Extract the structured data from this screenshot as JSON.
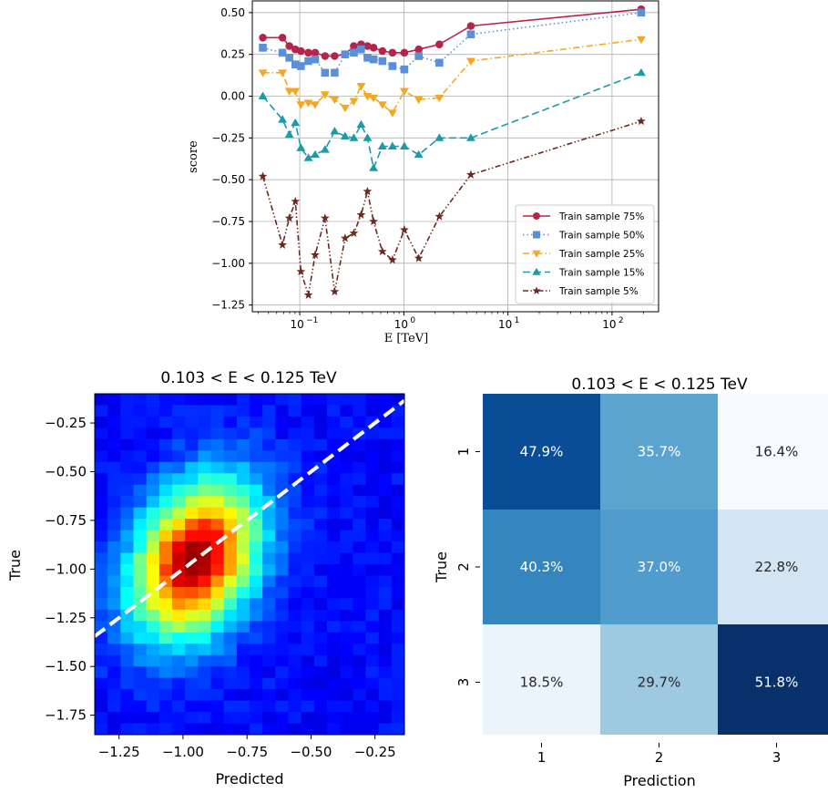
{
  "chart_data": [
    {
      "type": "line",
      "title": "",
      "xlabel": "E [TeV]",
      "ylabel": "score",
      "xscale": "log",
      "xlim": [
        0.035,
        280
      ],
      "ylim": [
        -1.29,
        0.57
      ],
      "xticks": [
        0.1,
        1,
        10,
        100
      ],
      "xtick_labels": [
        {
          "base": "10",
          "exp": "−1"
        },
        {
          "base": "10",
          "exp": "0"
        },
        {
          "base": "10",
          "exp": "1"
        },
        {
          "base": "10",
          "exp": "2"
        }
      ],
      "yticks": [
        0.5,
        0.25,
        0.0,
        -0.25,
        -0.5,
        -0.75,
        -1.0,
        -1.25
      ],
      "ytick_labels": [
        "0.50",
        "0.25",
        "0.00",
        "−0.25",
        "−0.50",
        "−0.75",
        "−1.00",
        "−1.25"
      ],
      "grid": true,
      "legend_position": "lower-right",
      "x": [
        0.0442,
        0.0682,
        0.0794,
        0.0907,
        0.1026,
        0.121,
        0.1405,
        0.1749,
        0.2164,
        0.2726,
        0.3307,
        0.3882,
        0.4472,
        0.5114,
        0.6219,
        0.7775,
        1.011,
        1.3891,
        2.1925,
        4.4031,
        190.7
      ],
      "series": [
        {
          "name": "Train sample 75%",
          "color": "#b5254b",
          "linestyle": "solid",
          "marker": "circle",
          "values": [
            0.35,
            0.35,
            0.3,
            0.28,
            0.27,
            0.26,
            0.26,
            0.24,
            0.24,
            0.25,
            0.3,
            0.31,
            0.3,
            0.29,
            0.27,
            0.26,
            0.26,
            0.28,
            0.31,
            0.42,
            0.52
          ]
        },
        {
          "name": "Train sample 50%",
          "color": "#5b8fd9",
          "linestyle": "dotted",
          "marker": "square",
          "values": [
            0.29,
            0.26,
            0.23,
            0.19,
            0.18,
            0.21,
            0.22,
            0.14,
            0.14,
            0.25,
            0.26,
            0.28,
            0.23,
            0.22,
            0.21,
            0.18,
            0.16,
            0.24,
            0.2,
            0.37,
            0.5
          ]
        },
        {
          "name": "Train sample 25%",
          "color": "#f5a623",
          "linestyle": "dashdot",
          "marker": "triangle-down",
          "values": [
            0.14,
            0.14,
            0.03,
            0.03,
            -0.05,
            -0.04,
            -0.05,
            0.01,
            -0.02,
            -0.07,
            -0.03,
            0.06,
            0.0,
            -0.01,
            -0.05,
            -0.1,
            0.03,
            -0.02,
            -0.01,
            0.21,
            0.34
          ]
        },
        {
          "name": "Train sample 15%",
          "color": "#1b9aaa",
          "linestyle": "dashed",
          "marker": "triangle-up",
          "values": [
            0.0,
            -0.14,
            -0.23,
            -0.16,
            -0.31,
            -0.37,
            -0.35,
            -0.32,
            -0.21,
            -0.24,
            -0.25,
            -0.17,
            -0.25,
            -0.43,
            -0.3,
            -0.3,
            -0.3,
            -0.35,
            -0.25,
            -0.25,
            0.14
          ]
        },
        {
          "name": "Train sample 5%",
          "color": "#6b2a1e",
          "linestyle": "dashdotdot",
          "marker": "star",
          "values": [
            -0.48,
            -0.89,
            -0.73,
            -0.63,
            -1.05,
            -1.19,
            -0.95,
            -0.73,
            -1.17,
            -0.85,
            -0.82,
            -0.71,
            -0.57,
            -0.75,
            -0.93,
            -0.98,
            -0.8,
            -0.97,
            -0.72,
            -0.47,
            -0.15
          ]
        }
      ]
    },
    {
      "type": "heatmap",
      "title": "0.103 < E < 0.125 TeV",
      "xlabel": "Predicted",
      "ylabel": "True",
      "xlim": [
        -1.345,
        -0.135
      ],
      "ylim": [
        -1.85,
        -0.1
      ],
      "xticks": [
        -1.25,
        -1.0,
        -0.75,
        -0.5,
        -0.25
      ],
      "xtick_labels": [
        "−1.25",
        "−1.00",
        "−0.75",
        "−0.50",
        "−0.25"
      ],
      "yticks": [
        -0.25,
        -0.5,
        -0.75,
        -1.0,
        -1.25,
        -1.5,
        -1.75
      ],
      "ytick_labels": [
        "−0.25",
        "−0.50",
        "−0.75",
        "−1.00",
        "−1.25",
        "−1.50",
        "−1.75"
      ],
      "colormap": "jet",
      "diagonal_line": {
        "from": [
          -1.345,
          -1.345
        ],
        "to": [
          -0.135,
          -0.135
        ],
        "color": "#ffffff",
        "style": "dashed"
      },
      "grid_cols": 24,
      "grid_rows": 30,
      "peak_x": -0.95,
      "peak_y": -0.95
    },
    {
      "type": "heatmap",
      "title": "0.103 < E < 0.125 TeV",
      "xlabel": "Prediction",
      "ylabel": "True",
      "colormap": "Blues",
      "x_categories": [
        "1",
        "2",
        "3"
      ],
      "y_categories": [
        "1",
        "2",
        "3"
      ],
      "values": [
        [
          47.9,
          35.7,
          16.4
        ],
        [
          40.3,
          37.0,
          22.8
        ],
        [
          18.5,
          29.7,
          51.8
        ]
      ],
      "labels": [
        [
          "47.9%",
          "35.7%",
          "16.4%"
        ],
        [
          "40.3%",
          "37.0%",
          "22.8%"
        ],
        [
          "18.5%",
          "29.7%",
          "51.8%"
        ]
      ]
    }
  ]
}
